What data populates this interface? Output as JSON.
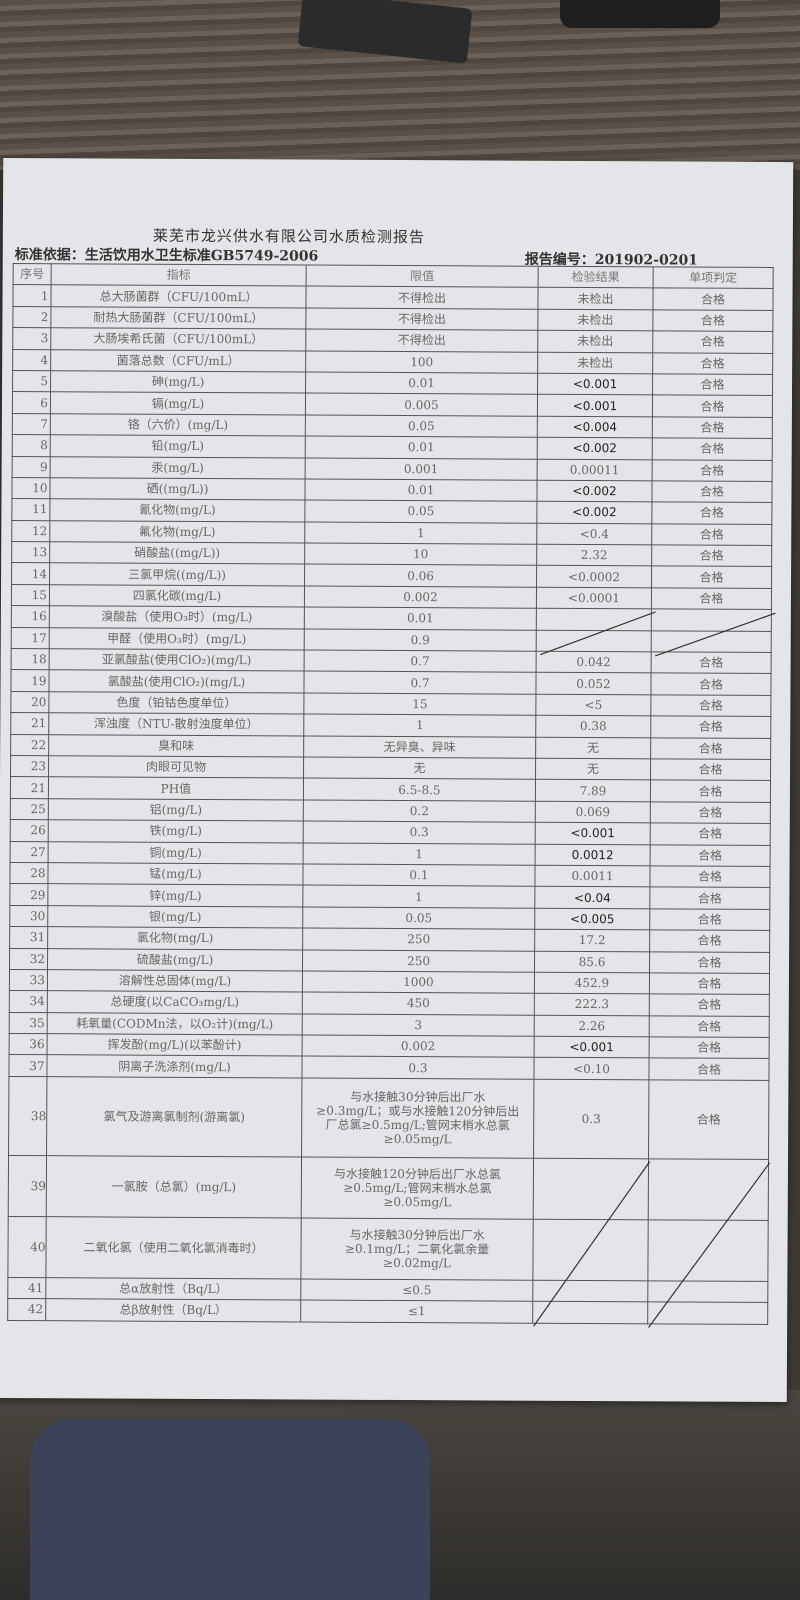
{
  "report": {
    "title": "莱芜市龙兴供水有限公司水质检测报告",
    "basis": "标准依据：生活饮用水卫生标准GB5749-2006",
    "report_no": "报告编号：201902-0201"
  },
  "headers": [
    "序号",
    "指标",
    "限值",
    "检验结果",
    "单项判定"
  ],
  "rows": [
    [
      "1",
      "总大肠菌群（CFU/100mL）",
      "不得检出",
      "未检出",
      "合格"
    ],
    [
      "2",
      "耐热大肠菌群（CFU/100mL）",
      "不得检出",
      "未检出",
      "合格"
    ],
    [
      "3",
      "大肠埃希氏菌（CFU/100mL）",
      "不得检出",
      "未检出",
      "合格"
    ],
    [
      "4",
      "菌落总数（CFU/mL）",
      "100",
      "未检出",
      "合格"
    ],
    [
      "5",
      "砷(mg/L)",
      "0.01",
      "<0.001",
      "合格"
    ],
    [
      "6",
      "镉(mg/L)",
      "0.005",
      "<0.001",
      "合格"
    ],
    [
      "7",
      "铬（六价）(mg/L)",
      "0.05",
      "<0.004",
      "合格"
    ],
    [
      "8",
      "铅(mg/L)",
      "0.01",
      "<0.002",
      "合格"
    ],
    [
      "9",
      "汞(mg/L)",
      "0.001",
      "0.00011",
      "合格"
    ],
    [
      "10",
      "硒((mg/L))",
      "0.01",
      "<0.002",
      "合格"
    ],
    [
      "11",
      "氰化物(mg/L)",
      "0.05",
      "<0.002",
      "合格"
    ],
    [
      "12",
      "氟化物(mg/L)",
      "1",
      "<0.4",
      "合格"
    ],
    [
      "13",
      "硝酸盐((mg/L))",
      "10",
      "2.32",
      "合格"
    ],
    [
      "14",
      "三氯甲烷((mg/L))",
      "0.06",
      "<0.0002",
      "合格"
    ],
    [
      "15",
      "四氯化碳(mg/L)",
      "0.002",
      "<0.0001",
      "合格"
    ],
    [
      "16",
      "溴酸盐（使用O₃时）(mg/L)",
      "0.01",
      "",
      ""
    ],
    [
      "17",
      "甲醛（使用O₃时）(mg/L)",
      "0.9",
      "",
      ""
    ],
    [
      "18",
      "亚氯酸盐(使用ClO₂)(mg/L)",
      "0.7",
      "0.042",
      "合格"
    ],
    [
      "19",
      "氯酸盐(使用ClO₂)(mg/L)",
      "0.7",
      "0.052",
      "合格"
    ],
    [
      "20",
      "色度（铂钴色度单位）",
      "15",
      "<5",
      "合格"
    ],
    [
      "21",
      "浑浊度（NTU-散射浊度单位）",
      "1",
      "0.38",
      "合格"
    ],
    [
      "22",
      "臭和味",
      "无异臭、异味",
      "无",
      "合格"
    ],
    [
      "23",
      "肉眼可见物",
      "无",
      "无",
      "合格"
    ],
    [
      "21",
      "PH值",
      "6.5-8.5",
      "7.89",
      "合格"
    ],
    [
      "25",
      "铝(mg/L)",
      "0.2",
      "0.069",
      "合格"
    ],
    [
      "26",
      "铁(mg/L)",
      "0.3",
      "<0.001",
      "合格"
    ],
    [
      "27",
      "铜(mg/L)",
      "1",
      "0.0012",
      "合格"
    ],
    [
      "28",
      "锰(mg/L)",
      "0.1",
      "0.0011",
      "合格"
    ],
    [
      "29",
      "锌(mg/L)",
      "1",
      "<0.04",
      "合格"
    ],
    [
      "30",
      "银(mg/L)",
      "0.05",
      "<0.005",
      "合格"
    ],
    [
      "31",
      "氯化物(mg/L)",
      "250",
      "17.2",
      "合格"
    ],
    [
      "32",
      "硫酸盐(mg/L)",
      "250",
      "85.6",
      "合格"
    ],
    [
      "33",
      "溶解性总固体(mg/L)",
      "1000",
      "452.9",
      "合格"
    ],
    [
      "34",
      "总硬度(以CaCO₃mg/L)",
      "450",
      "222.3",
      "合格"
    ],
    [
      "35",
      "耗氧量(CODMn法，以O₂计)(mg/L)",
      "3",
      "2.26",
      "合格"
    ],
    [
      "36",
      "挥发酚(mg/L)(以苯酚计)",
      "0.002",
      "<0.001",
      "合格"
    ],
    [
      "37",
      "阴离子洗涤剂(mg/L)",
      "0.3",
      "<0.10",
      "合格"
    ],
    [
      "38",
      "氯气及游离氯制剂(游离氯)",
      "与水接触30分钟后出厂水≥0.3mg/L；或与水接触120分钟后出厂总氯≥0.5mg/L;管网末梢水总氯≥0.05mg/L",
      "0.3",
      "合格"
    ],
    [
      "39",
      "一氯胺（总氯）(mg/L)",
      "与水接触120分钟后出厂水总氯≥0.5mg/L;管网末梢水总氯≥0.05mg/L",
      "",
      ""
    ],
    [
      "40",
      "二氧化氯（使用二氧化氯消毒时）",
      "与水接触30分钟后出厂水≥0.1mg/L；二氧化氯余量≥0.02mg/L",
      "",
      ""
    ],
    [
      "41",
      "总α放射性（Bq/L）",
      "≤0.5",
      "",
      ""
    ],
    [
      "42",
      "总β放射性（Bq/L）",
      "≤1",
      "",
      ""
    ]
  ]
}
